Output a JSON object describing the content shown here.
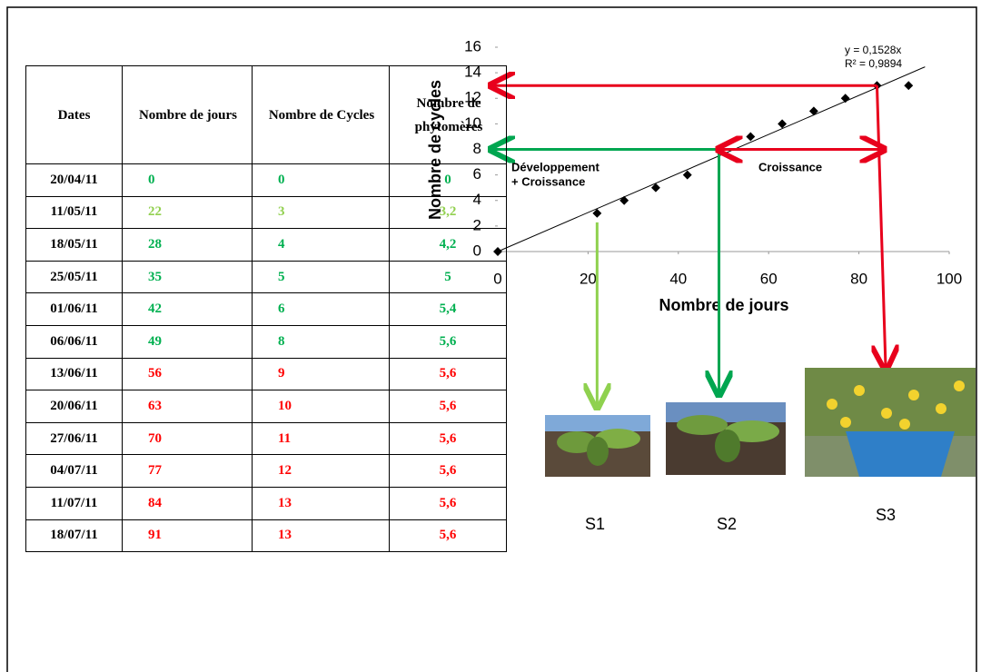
{
  "table": {
    "headers": [
      "Dates",
      "Nombre de jours",
      "Nombre de Cycles",
      "Nombre de phytomères"
    ],
    "rows": [
      [
        "20/04/11",
        "0",
        "0",
        "0"
      ],
      [
        "11/05/11",
        "22",
        "3",
        "3,2"
      ],
      [
        "18/05/11",
        "28",
        "4",
        "4,2"
      ],
      [
        "25/05/11",
        "35",
        "5",
        "5"
      ],
      [
        "01/06/11",
        "42",
        "6",
        "5,4"
      ],
      [
        "06/06/11",
        "49",
        "8",
        "5,6"
      ],
      [
        "13/06/11",
        "56",
        "9",
        "5,6"
      ],
      [
        "20/06/11",
        "63",
        "10",
        "5,6"
      ],
      [
        "27/06/11",
        "70",
        "11",
        "5,6"
      ],
      [
        "04/07/11",
        "77",
        "12",
        "5,6"
      ],
      [
        "11/07/11",
        "84",
        "13",
        "5,6"
      ],
      [
        "18/07/11",
        "91",
        "13",
        "5,6"
      ]
    ],
    "row_colors": [
      "#00b050",
      "#92d050",
      "#00b050",
      "#00b050",
      "#00b050",
      "#00b050",
      "#ff0000",
      "#ff0000",
      "#ff0000",
      "#ff0000",
      "#ff0000",
      "#ff0000"
    ]
  },
  "chart_data": {
    "type": "scatter",
    "x_label": "Nombre de jours",
    "y_label": "Nombre de cycles",
    "x": [
      0,
      22,
      28,
      35,
      42,
      49,
      56,
      63,
      70,
      77,
      84,
      91
    ],
    "series": [
      {
        "color": "#000000",
        "values": [
          0,
          3,
          4,
          5,
          6,
          8,
          9,
          10,
          11,
          12,
          13,
          13
        ]
      }
    ],
    "xlim": [
      0,
      100
    ],
    "xticks": [
      0,
      20,
      40,
      60,
      80,
      100
    ],
    "ylim": [
      0,
      16
    ],
    "yticks": [
      0,
      2,
      4,
      6,
      8,
      10,
      12,
      14,
      16
    ],
    "trendline": {
      "slope": 0.1528,
      "equation": "y = 0,1528x",
      "r2": "R² = 0,9894"
    },
    "annotations": {
      "development": [
        "Développement",
        "+ Croissance"
      ],
      "growth": "Croissance"
    },
    "stages": [
      "S1",
      "S2",
      "S3"
    ]
  }
}
